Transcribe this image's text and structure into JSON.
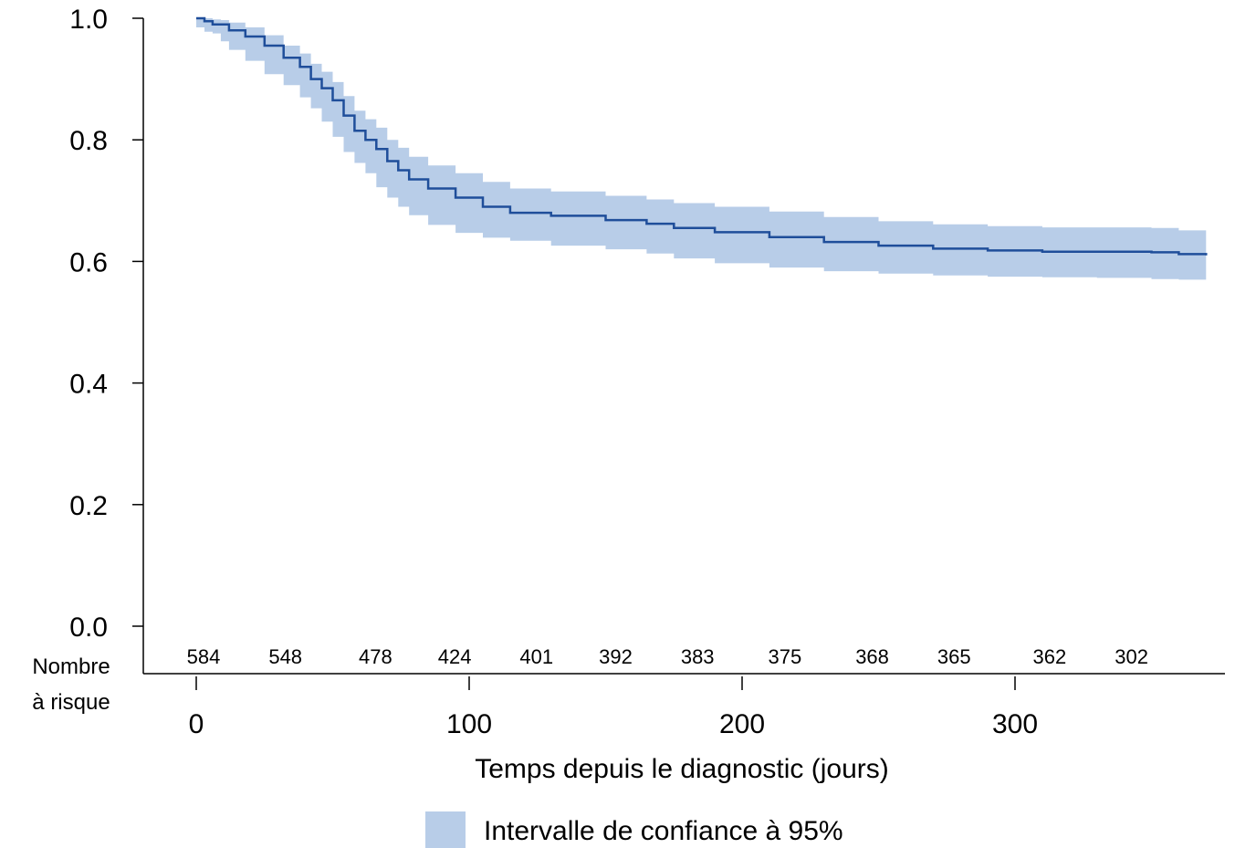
{
  "chart_data": {
    "type": "line",
    "title": "",
    "xlabel": "Temps depuis le diagnostic (jours)",
    "ylabel": "",
    "xlim": [
      0,
      370
    ],
    "ylim": [
      0.0,
      1.0
    ],
    "x_ticks": [
      "0",
      "100",
      "200",
      "300"
    ],
    "x_tick_values": [
      0,
      100,
      200,
      300
    ],
    "y_ticks": [
      "0.0",
      "0.2",
      "0.4",
      "0.6",
      "0.8",
      "1.0"
    ],
    "y_tick_values": [
      0.0,
      0.2,
      0.4,
      0.6,
      0.8,
      1.0
    ],
    "colors": {
      "line": "#1f4e9a",
      "band": "#b8cde8"
    },
    "series": [
      {
        "x": [
          0,
          3,
          6,
          9,
          12,
          18,
          25,
          32,
          38,
          42,
          46,
          50,
          54,
          58,
          62,
          66,
          70,
          74,
          78,
          85,
          95,
          105,
          115,
          130,
          150,
          165,
          175,
          190,
          210,
          230,
          250,
          270,
          290,
          310,
          330,
          350,
          360,
          370
        ],
        "y": [
          1.0,
          0.995,
          0.99,
          0.99,
          0.98,
          0.97,
          0.955,
          0.935,
          0.92,
          0.9,
          0.885,
          0.865,
          0.84,
          0.815,
          0.8,
          0.785,
          0.765,
          0.75,
          0.735,
          0.72,
          0.705,
          0.69,
          0.68,
          0.675,
          0.668,
          0.662,
          0.655,
          0.648,
          0.64,
          0.632,
          0.626,
          0.621,
          0.618,
          0.616,
          0.616,
          0.615,
          0.612,
          0.61
        ],
        "lower": [
          0.995,
          0.985,
          0.978,
          0.975,
          0.962,
          0.948,
          0.93,
          0.908,
          0.89,
          0.87,
          0.852,
          0.83,
          0.805,
          0.78,
          0.762,
          0.745,
          0.722,
          0.705,
          0.69,
          0.676,
          0.66,
          0.647,
          0.639,
          0.634,
          0.626,
          0.62,
          0.613,
          0.605,
          0.597,
          0.59,
          0.584,
          0.58,
          0.577,
          0.575,
          0.574,
          0.573,
          0.571,
          0.57
        ],
        "upper": [
          1.0,
          1.0,
          0.998,
          0.997,
          0.993,
          0.985,
          0.972,
          0.955,
          0.942,
          0.925,
          0.912,
          0.895,
          0.872,
          0.848,
          0.834,
          0.82,
          0.8,
          0.787,
          0.772,
          0.758,
          0.745,
          0.731,
          0.72,
          0.715,
          0.708,
          0.702,
          0.696,
          0.69,
          0.682,
          0.673,
          0.666,
          0.661,
          0.658,
          0.656,
          0.656,
          0.655,
          0.651,
          0.65
        ]
      }
    ],
    "risk_table": {
      "title_line1": "Nombre",
      "title_line2": "à risque",
      "counts": [
        "584",
        "548",
        "478",
        "424",
        "401",
        "392",
        "383",
        "375",
        "368",
        "365",
        "362",
        "302"
      ],
      "times": [
        0,
        30,
        63,
        92,
        122,
        151,
        181,
        213,
        245,
        275,
        310,
        340
      ]
    },
    "legend": {
      "label": "Intervalle de confiance à 95%",
      "position": "bottom"
    }
  }
}
